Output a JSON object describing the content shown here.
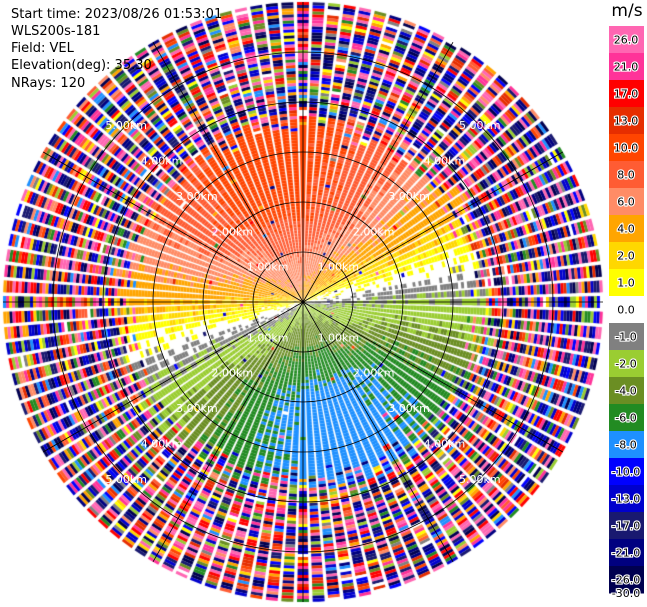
{
  "header": {
    "start_time": "Start time: 2023/08/26 01:53:01",
    "instrument": "WLS200s-181",
    "field": "Field: VEL",
    "elevation": "Elevation(deg): 35.30",
    "nrays": "NRays: 120"
  },
  "chart_data": {
    "type": "heatmap",
    "projection": "polar-ppi",
    "field": "VEL",
    "units": "m/s",
    "n_rays": 120,
    "max_range_km": 6.0,
    "range_ring_km": [
      1.0,
      2.0,
      3.0,
      4.0,
      5.0
    ],
    "range_ring_labels": [
      "1.00km",
      "2.00km",
      "3.00km",
      "4.00km",
      "5.00km"
    ],
    "spokes_deg": [
      0,
      30,
      60,
      90,
      120,
      150,
      180,
      210,
      240,
      270,
      300,
      330
    ],
    "colorbar": {
      "label": "m/s",
      "ticks": [
        26.0,
        21.0,
        17.0,
        13.0,
        10.0,
        8.0,
        6.0,
        4.0,
        2.0,
        1.0,
        0.0,
        -1.0,
        -2.0,
        -4.0,
        -6.0,
        -8.0,
        -10.0,
        -13.0,
        -17.0,
        -21.0,
        -26.0,
        -30.0
      ],
      "tick_labels": [
        "26.0",
        "21.0",
        "17.0",
        "13.0",
        "10.0",
        "8.0",
        "6.0",
        "4.0",
        "2.0",
        "1.0",
        "0.0",
        "-1.0",
        "-2.0",
        "-4.0",
        "-6.0",
        "-8.0",
        "-10.0",
        "-13.0",
        "-17.0",
        "-21.0",
        "-26.0",
        "-30.0"
      ],
      "colors": [
        "#ff66b2",
        "#ff3399",
        "#ff0000",
        "#e62e00",
        "#ff4500",
        "#ff5c33",
        "#ff8c66",
        "#ffa500",
        "#ffd700",
        "#ffff00",
        "#ffffff",
        "#808080",
        "#9acd32",
        "#6b8e23",
        "#228b22",
        "#1e90ff",
        "#0000ff",
        "#0000cd",
        "#191970",
        "#000080",
        "#000050"
      ]
    },
    "wind_field": {
      "approach_direction_deg": 345,
      "peak_radial_velocity_ms": 9.0,
      "clean_range_km": 3.6
    },
    "grid": true
  }
}
